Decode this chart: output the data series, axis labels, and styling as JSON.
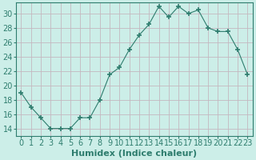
{
  "x": [
    0,
    1,
    2,
    3,
    4,
    5,
    6,
    7,
    8,
    9,
    10,
    11,
    12,
    13,
    14,
    15,
    16,
    17,
    18,
    19,
    20,
    21,
    22,
    23
  ],
  "y": [
    19,
    17,
    15.5,
    14,
    14,
    14,
    15.5,
    15.5,
    18,
    21.5,
    22.5,
    25,
    27,
    28.5,
    31,
    29.5,
    31,
    30,
    30.5,
    28,
    27.5,
    27.5,
    25,
    21.5
  ],
  "line_color": "#2e7d6e",
  "marker": "+",
  "marker_size": 5,
  "marker_lw": 1.2,
  "bg_color": "#cceee8",
  "grid_color": "#c4b8c0",
  "title": "",
  "xlabel": "Humidex (Indice chaleur)",
  "ylabel": "",
  "xlim": [
    -0.5,
    23.5
  ],
  "ylim": [
    13.0,
    31.5
  ],
  "yticks": [
    14,
    16,
    18,
    20,
    22,
    24,
    26,
    28,
    30
  ],
  "xtick_labels": [
    "0",
    "1",
    "2",
    "3",
    "4",
    "5",
    "6",
    "7",
    "8",
    "9",
    "10",
    "11",
    "12",
    "13",
    "14",
    "15",
    "16",
    "17",
    "18",
    "19",
    "20",
    "21",
    "22",
    "23"
  ],
  "tick_color": "#2e7d6e",
  "spine_color": "#2e7d6e",
  "xlabel_fontsize": 8,
  "tick_fontsize": 7
}
